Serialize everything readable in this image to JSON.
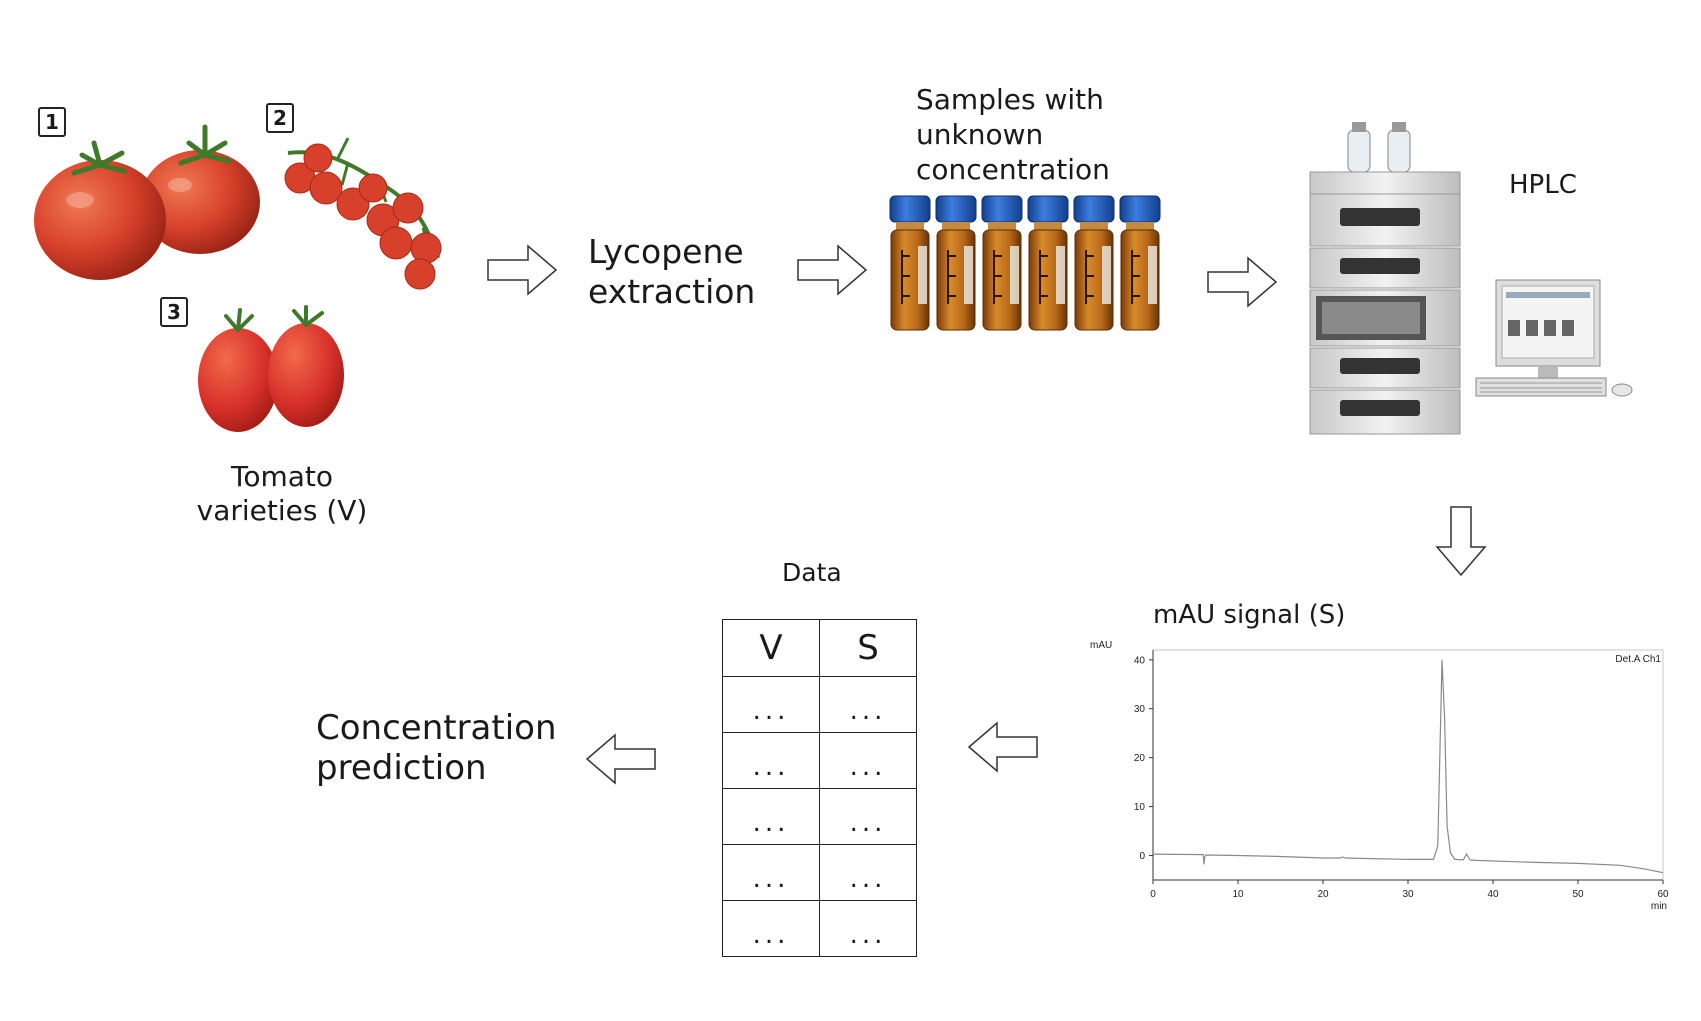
{
  "varieties": {
    "badges": [
      "1",
      "2",
      "3"
    ],
    "caption": [
      "Tomato",
      "varieties (V)"
    ]
  },
  "extraction": {
    "label": [
      "Lycopene",
      "extraction"
    ]
  },
  "samples": {
    "label": [
      "Samples with",
      "unknown",
      "concentration"
    ],
    "vial_count": 6
  },
  "hplc": {
    "label": "HPLC"
  },
  "signal": {
    "label": "mAU signal (S)"
  },
  "data_table": {
    "title": "Data",
    "headers": [
      "V",
      "S"
    ],
    "rows": [
      [
        "...",
        "..."
      ],
      [
        "...",
        "..."
      ],
      [
        "...",
        "..."
      ],
      [
        "...",
        "..."
      ],
      [
        "...",
        "..."
      ]
    ]
  },
  "prediction": {
    "label": [
      "Concentration",
      "prediction"
    ]
  },
  "colors": {
    "tomato": "#d7402a",
    "vial_amber": "#b8691a",
    "vial_cap": "#1f5fc4",
    "instrument": "#dcdcdc"
  },
  "chart_data": {
    "type": "line",
    "ylabel": "mAU",
    "xlabel": "min",
    "channel_label": "Det.A Ch1",
    "xlim": [
      0,
      60
    ],
    "ylim": [
      -5,
      42
    ],
    "x_ticks": [
      "0",
      "10",
      "20",
      "30",
      "40",
      "50",
      "60"
    ],
    "y_ticks": [
      "40",
      "30",
      "20",
      "10",
      "0"
    ],
    "y_tick_values": [
      40,
      30,
      20,
      10,
      0
    ],
    "series": [
      {
        "name": "Det.A Ch1",
        "x": [
          0,
          5.9,
          6.0,
          6.1,
          6.2,
          10,
          15,
          20,
          22,
          22.3,
          22.6,
          25,
          30,
          33,
          33.5,
          34.0,
          34.3,
          34.6,
          35.0,
          35.5,
          36.5,
          36.9,
          37.3,
          38,
          45,
          50,
          55,
          58,
          60
        ],
        "y": [
          0.3,
          0.2,
          -1.8,
          -0.3,
          0.1,
          0.0,
          -0.2,
          -0.5,
          -0.5,
          -0.3,
          -0.5,
          -0.6,
          -0.8,
          -0.8,
          2,
          40,
          28,
          6,
          0.5,
          -0.8,
          -0.9,
          0.3,
          -0.9,
          -1.0,
          -1.4,
          -1.6,
          -2.0,
          -2.8,
          -3.5
        ]
      }
    ]
  }
}
